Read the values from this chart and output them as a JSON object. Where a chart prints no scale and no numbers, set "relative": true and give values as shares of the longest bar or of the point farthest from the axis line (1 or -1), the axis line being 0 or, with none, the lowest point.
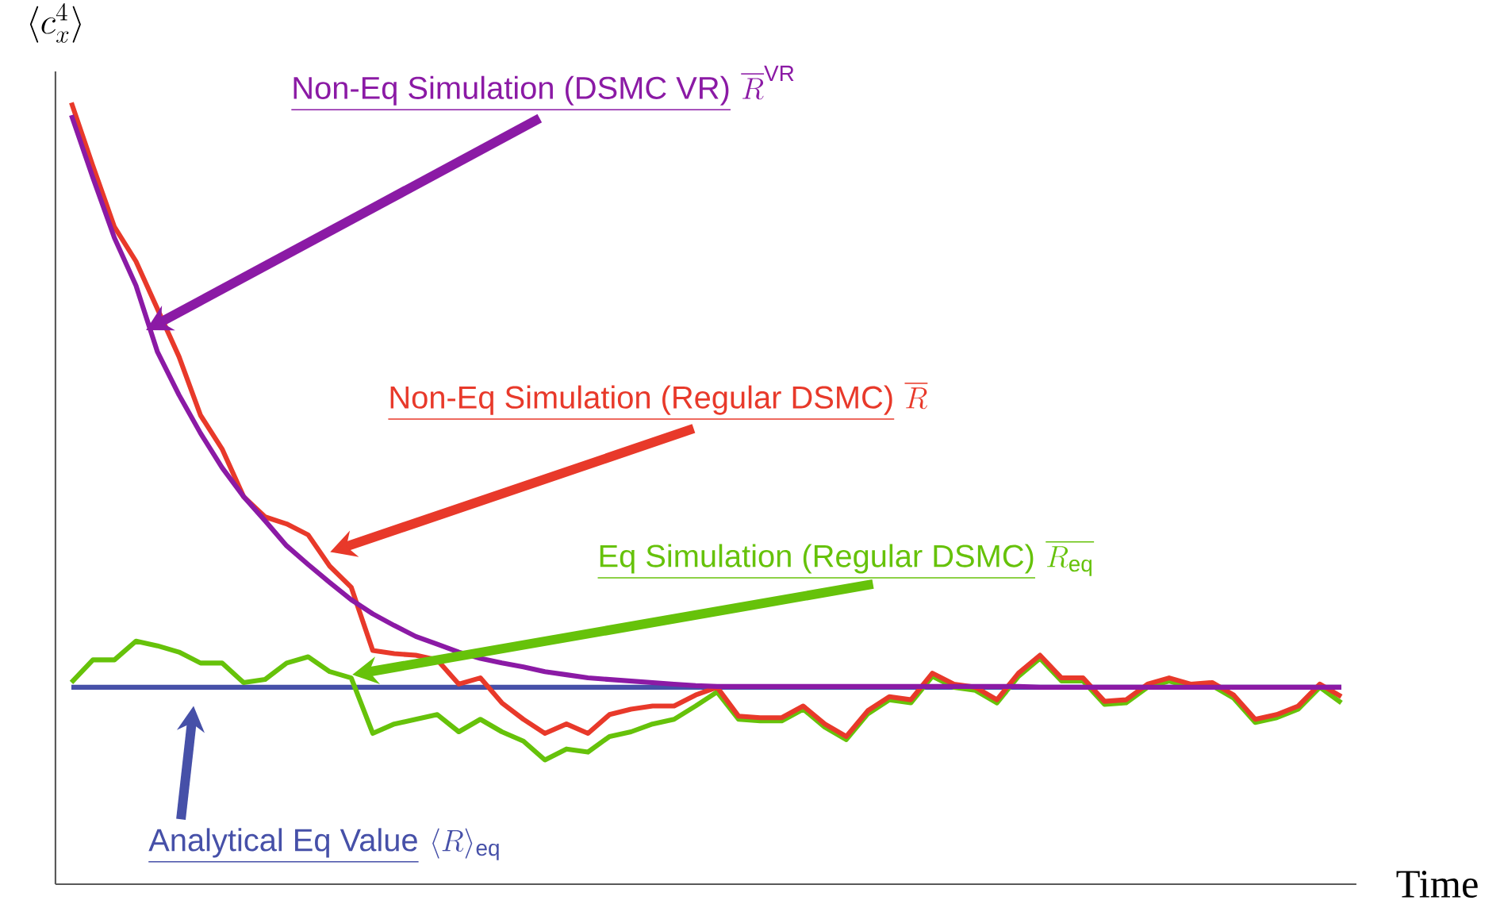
{
  "chart_data": {
    "type": "line",
    "relative": true,
    "marker": "none",
    "line_style": "solid",
    "xlabel": "Time",
    "ylabel": "\\langle c_x^4\\rangle",
    "categories": [
      null,
      null,
      null,
      null,
      null,
      null,
      null,
      null,
      null,
      null,
      null,
      null,
      null,
      null,
      null,
      null,
      null,
      null,
      null,
      null,
      null,
      null,
      null,
      null,
      null,
      null,
      null,
      null,
      null,
      null,
      null,
      null,
      null,
      null,
      null,
      null,
      null,
      null,
      null,
      null,
      null,
      null,
      null,
      null,
      null,
      null,
      null,
      null,
      null,
      null,
      null,
      null,
      null,
      null,
      null,
      null,
      null,
      null,
      null,
      null
    ],
    "series": [
      {
        "name": "Analytical  Eq Value",
        "color": "#4650a8",
        "values": [
          0.252,
          0.252,
          0.252,
          0.252,
          0.252,
          0.252,
          0.252,
          0.252,
          0.252,
          0.252,
          0.252,
          0.252,
          0.252,
          0.252,
          0.252,
          0.252,
          0.252,
          0.252,
          0.252,
          0.252,
          0.252,
          0.252,
          0.252,
          0.252,
          0.252,
          0.252,
          0.252,
          0.252,
          0.252,
          0.252,
          0.252,
          0.252,
          0.252,
          0.252,
          0.252,
          0.252,
          0.252,
          0.252,
          0.252,
          0.252,
          0.252,
          0.252,
          0.252,
          0.252,
          0.252,
          0.252,
          0.252,
          0.252,
          0.252,
          0.252,
          0.252,
          0.252,
          0.252,
          0.252,
          0.252,
          0.252,
          0.252,
          0.252,
          0.252,
          0.252
        ]
      },
      {
        "name": "Eq Simulation (Regular DSMC)",
        "color": "#66c20a",
        "values": [
          0.258,
          0.287,
          0.287,
          0.311,
          0.305,
          0.297,
          0.283,
          0.283,
          0.258,
          0.262,
          0.283,
          0.291,
          0.272,
          0.264,
          0.193,
          0.205,
          0.211,
          0.217,
          0.195,
          0.211,
          0.195,
          0.183,
          0.159,
          0.173,
          0.169,
          0.189,
          0.195,
          0.205,
          0.211,
          0.228,
          0.246,
          0.211,
          0.209,
          0.209,
          0.224,
          0.201,
          0.185,
          0.218,
          0.236,
          0.232,
          0.266,
          0.252,
          0.248,
          0.232,
          0.266,
          0.289,
          0.26,
          0.26,
          0.23,
          0.232,
          0.252,
          0.26,
          0.252,
          0.254,
          0.238,
          0.207,
          0.213,
          0.224,
          0.252,
          0.232
        ]
      },
      {
        "name": "Non-Eq Simulation (Regular DSMC)",
        "color": "#e8392a",
        "values": [
          1,
          0.919,
          0.841,
          0.797,
          0.736,
          0.675,
          0.6,
          0.557,
          0.496,
          0.47,
          0.461,
          0.447,
          0.407,
          0.38,
          0.299,
          0.295,
          0.293,
          0.287,
          0.256,
          0.264,
          0.232,
          0.211,
          0.193,
          0.205,
          0.193,
          0.217,
          0.224,
          0.228,
          0.228,
          0.242,
          0.252,
          0.215,
          0.213,
          0.213,
          0.228,
          0.205,
          0.189,
          0.222,
          0.24,
          0.236,
          0.27,
          0.256,
          0.252,
          0.236,
          0.27,
          0.293,
          0.264,
          0.264,
          0.234,
          0.236,
          0.256,
          0.264,
          0.256,
          0.258,
          0.242,
          0.211,
          0.217,
          0.228,
          0.256,
          0.24
        ]
      },
      {
        "name": "Non-Eq Simulation (DSMC VR)",
        "color": "#8b1aa5",
        "values": [
          0.984,
          0.904,
          0.827,
          0.766,
          0.681,
          0.626,
          0.577,
          0.533,
          0.496,
          0.465,
          0.433,
          0.409,
          0.386,
          0.364,
          0.346,
          0.331,
          0.317,
          0.307,
          0.297,
          0.289,
          0.283,
          0.278,
          0.272,
          0.268,
          0.264,
          0.262,
          0.26,
          0.258,
          0.256,
          0.254,
          0.253,
          0.253,
          0.253,
          0.253,
          0.253,
          0.253,
          0.253,
          0.253,
          0.253,
          0.253,
          0.253,
          0.253,
          0.253,
          0.253,
          0.253,
          0.252,
          0.252,
          0.252,
          0.252,
          0.252,
          0.252,
          0.252,
          0.252,
          0.252,
          0.252,
          0.252,
          0.252,
          0.252,
          0.252,
          0.252
        ]
      }
    ],
    "annotations": [
      "\\langle R\\rangle_{\\mathrm{eq}}",
      "\\overline{R_{\\mathrm{eq}}}",
      "\\overline{R}",
      "\\overline{R}^{\\mathrm{VR}}"
    ]
  }
}
